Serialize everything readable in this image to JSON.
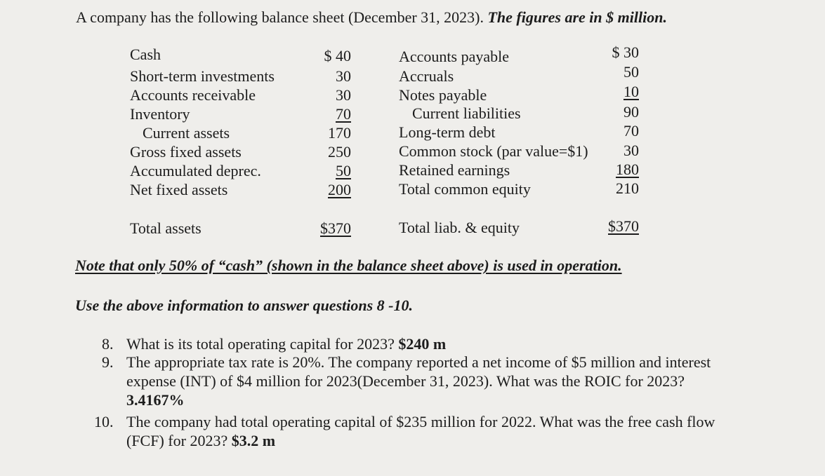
{
  "intro": {
    "text": "A company has the following balance sheet (December 31, 2023). ",
    "emphasis": "The figures are in $ million."
  },
  "assets": [
    {
      "label": "Cash",
      "value": "$ 40"
    },
    {
      "label": "Short-term investments",
      "value": "30"
    },
    {
      "label": "Accounts receivable",
      "value": "30"
    },
    {
      "label": "Inventory",
      "value": "70"
    },
    {
      "label": "Current assets",
      "value": "170"
    },
    {
      "label": "Gross fixed assets",
      "value": "250"
    },
    {
      "label": "Accumulated deprec.",
      "value": "50"
    },
    {
      "label": "Net fixed assets",
      "value": "200"
    },
    {
      "label": "Total assets",
      "value": "$370"
    }
  ],
  "liabilities": [
    {
      "label": "Accounts payable",
      "value": "$ 30"
    },
    {
      "label": "Accruals",
      "value": "50"
    },
    {
      "label": "Notes payable",
      "value": "10"
    },
    {
      "label": "Current liabilities",
      "value": "90"
    },
    {
      "label": "Long-term debt",
      "value": "70"
    },
    {
      "label": "Common stock (par value=$1)",
      "value": "30"
    },
    {
      "label": "Retained earnings",
      "value": "180"
    },
    {
      "label": "Total common equity",
      "value": "210"
    },
    {
      "label": "Total liab. & equity",
      "value": "$370"
    }
  ],
  "note": "Note that only 50% of “cash” (shown in the balance sheet above) is used in operation.",
  "instruction": "Use the above information to answer questions 8 -10.",
  "questions": [
    {
      "number": "8.",
      "text": "What is its total operating capital for 2023? ",
      "answer": "$240 m"
    },
    {
      "number": "9.",
      "text": "The appropriate tax rate is 20%. The company reported a net income of $5 million and interest expense (INT) of $4 million for 2023(December 31, 2023). What was the ROIC for 2023? ",
      "answer": "3.4167%"
    },
    {
      "number": "10.",
      "text": "The company had total operating capital of $235 million for 2022. What was the free cash flow (FCF) for 2023? ",
      "answer": "$3.2 m"
    }
  ]
}
